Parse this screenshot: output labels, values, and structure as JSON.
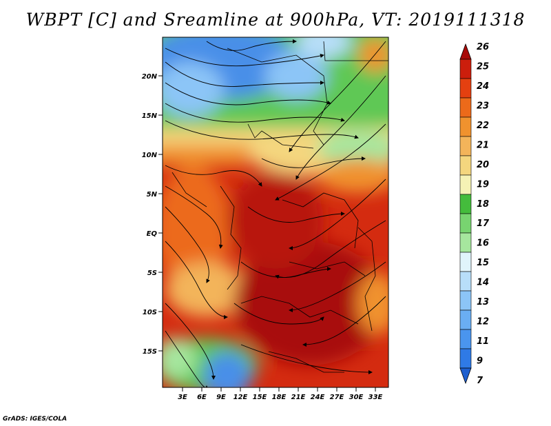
{
  "title": "WBPT [C] and Sreamline at 900hPa, VT: 2019111318",
  "credit": "GrADS: IGES/COLA",
  "map": {
    "lat_labels": [
      "20N",
      "15N",
      "10N",
      "5N",
      "EQ",
      "5S",
      "10S",
      "15S"
    ],
    "lon_labels": [
      "3E",
      "6E",
      "9E",
      "12E",
      "15E",
      "18E",
      "21E",
      "24E",
      "27E",
      "30E",
      "33E"
    ]
  },
  "colorbar": {
    "labels": [
      "7",
      "9",
      "11",
      "12",
      "13",
      "14",
      "15",
      "16",
      "17",
      "18",
      "19",
      "20",
      "21",
      "22",
      "23",
      "24",
      "25",
      "26"
    ],
    "colors": [
      "#1e5fcf",
      "#2f7ae6",
      "#4a95ee",
      "#6aaef3",
      "#8cc5f7",
      "#b8def9",
      "#e0f4fb",
      "#a6e69e",
      "#78d470",
      "#44bc3c",
      "#f5f2b5",
      "#f4d67e",
      "#f3b45a",
      "#f0922e",
      "#ec6a1a",
      "#e44010",
      "#cc1e0c",
      "#a80a08"
    ]
  }
}
